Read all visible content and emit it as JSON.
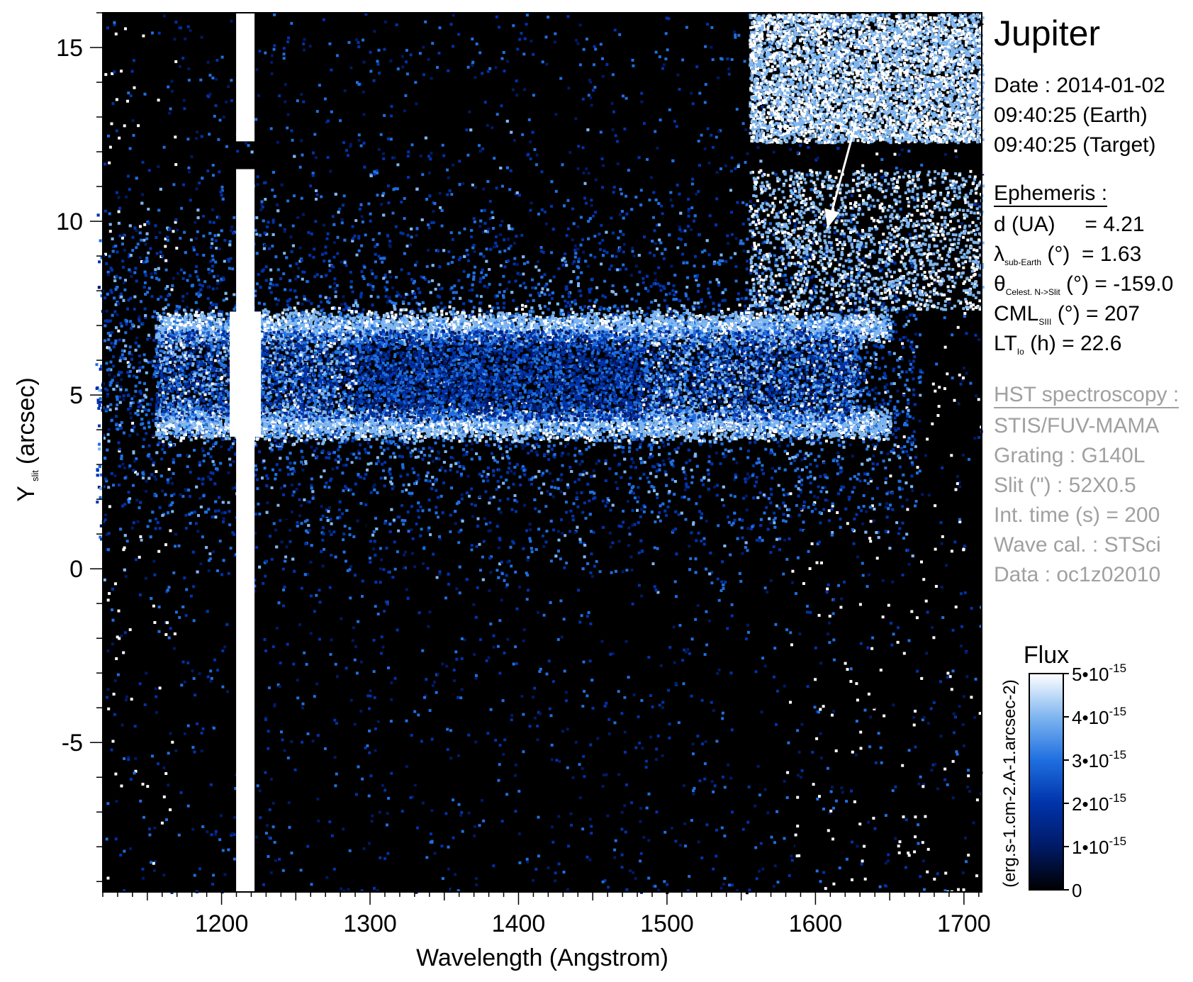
{
  "panel": {
    "title": "Jupiter",
    "date_lines": [
      "Date : 2014-01-02",
      "09:40:25 (Earth)",
      "09:40:25 (Target)"
    ],
    "ephemeris_header": "Ephemeris :",
    "ephemeris": [
      {
        "main": "d (UA)",
        "sub": "",
        "rest": "     = 4.21"
      },
      {
        "main": "λ",
        "sub": "sub-Earth",
        "rest": " (°)  = 1.63"
      },
      {
        "main": "θ",
        "sub": "Celest. N->Slit",
        "rest": " (°) = -159.0"
      },
      {
        "main": "CML",
        "sub": "SIII",
        "rest": " (°) = 207"
      },
      {
        "main": "LT",
        "sub": "Io",
        "rest": " (h) = 22.6"
      }
    ],
    "hst_header": "HST spectroscopy :",
    "hst_lines": [
      "STIS/FUV-MAMA",
      "Grating : G140L",
      "Slit (\") : 52X0.5",
      "Int. time (s) = 200",
      "Wave cal. : STSci",
      "Data : oc1z02010"
    ]
  },
  "chart_data": {
    "type": "heatmap",
    "xlabel": "Wavelength (Angstrom)",
    "ylabel": "Y",
    "ylabel_sub": "slit",
    "ylabel_unit": "(arcsec)",
    "xlim": [
      1120,
      1712
    ],
    "ylim": [
      -9.3,
      16.0
    ],
    "xticks": [
      1200,
      1300,
      1400,
      1500,
      1600,
      1700
    ],
    "xtick_labels": [
      "1200",
      "1300",
      "1400",
      "1500",
      "1600",
      "1700"
    ],
    "yticks": [
      -5,
      0,
      5,
      10,
      15
    ],
    "ytick_labels": [
      "-5",
      "0",
      "5",
      "10",
      "15"
    ],
    "colorbar": {
      "title": "Flux",
      "unit": "(erg.s-1.cm-2.A-1.arcsec-2)",
      "min": 0,
      "max": 5e-15,
      "ticks": [
        0,
        1e-15,
        2e-15,
        3e-15,
        4e-15,
        5e-15
      ],
      "tick_labels": [
        {
          "base": "0",
          "exp": ""
        },
        {
          "base": "1•10",
          "exp": "-15"
        },
        {
          "base": "2•10",
          "exp": "-15"
        },
        {
          "base": "3•10",
          "exp": "-15"
        },
        {
          "base": "4•10",
          "exp": "-15"
        },
        {
          "base": "5•10",
          "exp": "-15"
        }
      ],
      "colors": [
        "#000000",
        "#001a66",
        "#0033aa",
        "#1f6fe0",
        "#7fb6f0",
        "#ffffff"
      ]
    },
    "features": {
      "lyman_alpha_line": {
        "x": 1216,
        "y_range": [
          -9.3,
          16.0
        ],
        "gap": [
          11.5,
          12.3
        ]
      },
      "auroral_bands_y": [
        7.0,
        4.2
      ],
      "auroral_x_range": [
        1155,
        1650
      ],
      "geocorona_region": {
        "x_range": [
          1555,
          1712
        ],
        "y_range": [
          12.3,
          16.0
        ]
      },
      "arrow": {
        "from": [
          1627,
          12.8
        ],
        "to": [
          1608,
          9.8
        ]
      }
    },
    "background": "#000000"
  }
}
